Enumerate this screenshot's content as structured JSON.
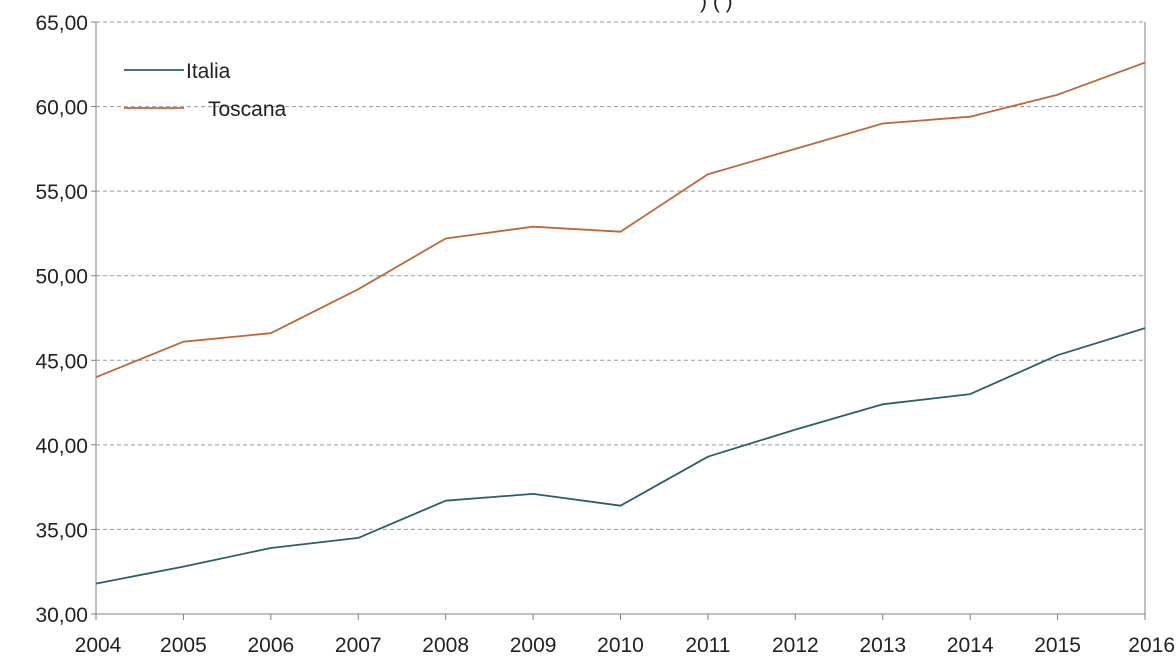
{
  "chart_data": {
    "type": "line",
    "title": "",
    "xlabel": "",
    "ylabel": "",
    "categories": [
      "2004",
      "2005",
      "2006",
      "2007",
      "2008",
      "2009",
      "2010",
      "2011",
      "2012",
      "2013",
      "2014",
      "2015",
      "2016"
    ],
    "x_tick_labels": [
      "2004",
      "2005",
      "2006",
      "2007",
      "2008",
      "2009",
      "2010",
      "2011",
      "2012",
      "2013",
      "2014",
      "2015",
      "2016"
    ],
    "y_tick_labels": [
      "30,00",
      "35,00",
      "40,00",
      "45,00",
      "50,00",
      "55,00",
      "60,00",
      "65,00"
    ],
    "ylim": [
      30,
      65
    ],
    "grid": true,
    "legend_position": "top-left",
    "series": [
      {
        "name": "Italia",
        "color": "#2e5f66",
        "values": [
          31.8,
          32.8,
          33.9,
          34.5,
          36.7,
          37.1,
          36.4,
          39.3,
          40.9,
          42.4,
          43.0,
          45.3,
          46.9
        ]
      },
      {
        "name": "Toscana",
        "color": "#c0673a",
        "values": [
          44.0,
          46.1,
          46.6,
          49.2,
          52.2,
          52.9,
          52.6,
          56.0,
          57.5,
          59.0,
          59.4,
          60.7,
          62.6
        ]
      }
    ],
    "clipped_top_text": ") ( )"
  }
}
